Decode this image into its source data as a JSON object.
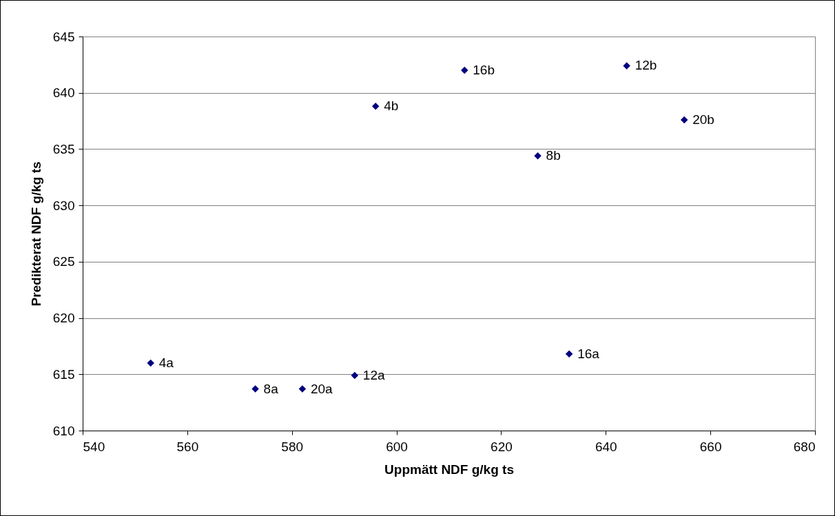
{
  "chart_data": {
    "type": "scatter",
    "xlabel": "Uppmätt NDF g/kg ts",
    "ylabel": "Predikterat NDF g/kg ts",
    "x": [
      553,
      573,
      582,
      592,
      633,
      596,
      613,
      644,
      655,
      627
    ],
    "values": [
      616.0,
      613.7,
      613.7,
      614.9,
      616.8,
      638.8,
      642.0,
      642.4,
      637.6,
      634.4
    ],
    "color": "#000080",
    "marker": "diamond",
    "grid": "y",
    "xlim": [
      540,
      680
    ],
    "xticks": [
      540,
      560,
      580,
      600,
      620,
      640,
      660,
      680
    ],
    "ylim": [
      610,
      645
    ],
    "yticks": [
      610,
      615,
      620,
      625,
      630,
      635,
      640,
      645
    ],
    "annotations": [
      {
        "text": "4a",
        "x": 553,
        "y": 616.0
      },
      {
        "text": "8a",
        "x": 573,
        "y": 613.7
      },
      {
        "text": "20a",
        "x": 582,
        "y": 613.7
      },
      {
        "text": "12a",
        "x": 592,
        "y": 614.9
      },
      {
        "text": "16a",
        "x": 633,
        "y": 616.8
      },
      {
        "text": "4b",
        "x": 596,
        "y": 638.8
      },
      {
        "text": "16b",
        "x": 613,
        "y": 642.0
      },
      {
        "text": "12b",
        "x": 644,
        "y": 642.4
      },
      {
        "text": "20b",
        "x": 655,
        "y": 637.6
      },
      {
        "text": "8b",
        "x": 627,
        "y": 634.4
      }
    ]
  }
}
